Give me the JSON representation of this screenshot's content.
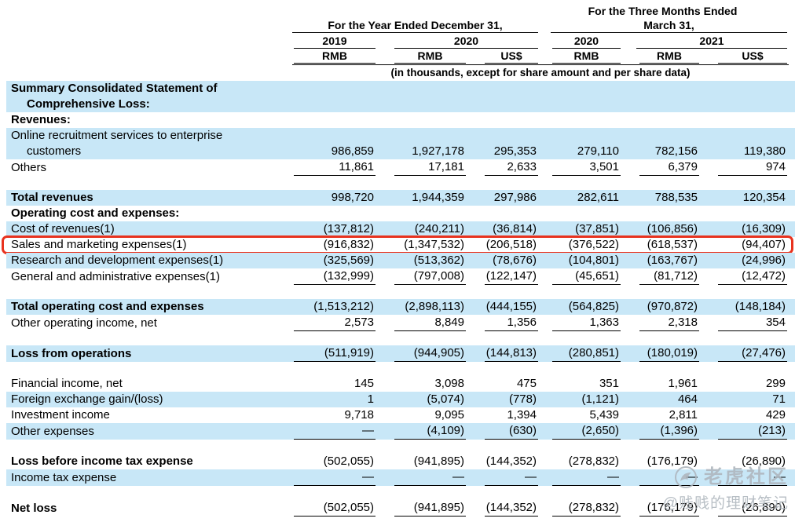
{
  "header": {
    "group_year": "For the Year Ended December 31,",
    "group_three_months_line1": "For the Three Months Ended",
    "group_three_months_line2": "March 31,",
    "years": [
      "2019",
      "2020",
      "2020",
      "2021"
    ],
    "currencies": [
      "RMB",
      "RMB",
      "US$",
      "RMB",
      "RMB",
      "US$"
    ],
    "units_note": "(in thousands, except for share amount and per share data)"
  },
  "colors": {
    "row_shade": "#c8e7f7",
    "highlight_border": "#e8321e",
    "watermark": "#aeb6bd"
  },
  "watermark": {
    "brand": "老虎社区",
    "handle": "@贱贱的理财笔记"
  },
  "table": {
    "rows": [
      {
        "label_lines": [
          "Summary Consolidated Statement of",
          "Comprehensive Loss:"
        ],
        "bold": true,
        "shaded": true,
        "cells": [
          "",
          "",
          "",
          "",
          "",
          ""
        ]
      },
      {
        "label": "Revenues:",
        "bold": true,
        "shaded": false,
        "cells": [
          "",
          "",
          "",
          "",
          "",
          ""
        ]
      },
      {
        "label_lines": [
          "Online recruitment services to enterprise",
          "customers"
        ],
        "bold": false,
        "shaded": true,
        "cells": [
          "986,859",
          "1,927,178",
          "295,353",
          "279,110",
          "782,156",
          "119,380"
        ]
      },
      {
        "label": "Others",
        "bold": false,
        "shaded": false,
        "underline": true,
        "cells": [
          "11,861",
          "17,181",
          "2,633",
          "3,501",
          "6,379",
          "974"
        ]
      },
      {
        "spacer": true
      },
      {
        "label": "Total revenues",
        "bold": true,
        "shaded": true,
        "cells": [
          "998,720",
          "1,944,359",
          "297,986",
          "282,611",
          "788,535",
          "120,354"
        ]
      },
      {
        "label": "Operating cost and expenses:",
        "bold": true,
        "shaded": false,
        "cells": [
          "",
          "",
          "",
          "",
          "",
          ""
        ]
      },
      {
        "label": "Cost of revenues(1)",
        "bold": false,
        "shaded": true,
        "cells": [
          "(137,812)",
          "(240,211)",
          "(36,814)",
          "(37,851)",
          "(106,856)",
          "(16,309)"
        ]
      },
      {
        "label": "Sales and marketing expenses(1)",
        "bold": false,
        "shaded": false,
        "highlight": true,
        "cells": [
          "(916,832)",
          "(1,347,532)",
          "(206,518)",
          "(376,522)",
          "(618,537)",
          "(94,407)"
        ]
      },
      {
        "label": "Research and development expenses(1)",
        "bold": false,
        "shaded": true,
        "cells": [
          "(325,569)",
          "(513,362)",
          "(78,676)",
          "(104,801)",
          "(163,767)",
          "(24,996)"
        ]
      },
      {
        "label": "General and administrative expenses(1)",
        "bold": false,
        "shaded": false,
        "underline": true,
        "cells": [
          "(132,999)",
          "(797,008)",
          "(122,147)",
          "(45,651)",
          "(81,712)",
          "(12,472)"
        ]
      },
      {
        "spacer": true
      },
      {
        "label": "Total operating cost and expenses",
        "bold": true,
        "shaded": true,
        "cells": [
          "(1,513,212)",
          "(2,898,113)",
          "(444,155)",
          "(564,825)",
          "(970,872)",
          "(148,184)"
        ]
      },
      {
        "label": "Other operating income, net",
        "bold": false,
        "shaded": false,
        "underline": true,
        "cells": [
          "2,573",
          "8,849",
          "1,356",
          "1,363",
          "2,318",
          "354"
        ]
      },
      {
        "spacer": true
      },
      {
        "label": "Loss from operations",
        "bold": true,
        "shaded": true,
        "underline": true,
        "cells": [
          "(511,919)",
          "(944,905)",
          "(144,813)",
          "(280,851)",
          "(180,019)",
          "(27,476)"
        ]
      },
      {
        "spacer": true
      },
      {
        "label": "Financial income, net",
        "bold": false,
        "shaded": false,
        "cells": [
          "145",
          "3,098",
          "475",
          "351",
          "1,961",
          "299"
        ]
      },
      {
        "label": "Foreign exchange gain/(loss)",
        "bold": false,
        "shaded": true,
        "cells": [
          "1",
          "(5,074)",
          "(778)",
          "(1,121)",
          "464",
          "71"
        ]
      },
      {
        "label": "Investment income",
        "bold": false,
        "shaded": false,
        "cells": [
          "9,718",
          "9,095",
          "1,394",
          "5,439",
          "2,811",
          "429"
        ]
      },
      {
        "label": "Other expenses",
        "bold": false,
        "shaded": true,
        "underline": true,
        "cells": [
          "—",
          "(4,109)",
          "(630)",
          "(2,650)",
          "(1,396)",
          "(213)"
        ]
      },
      {
        "spacer": true
      },
      {
        "label": "Loss before income tax expense",
        "bold": true,
        "shaded": false,
        "cells": [
          "(502,055)",
          "(941,895)",
          "(144,352)",
          "(278,832)",
          "(176,179)",
          "(26,890)"
        ]
      },
      {
        "label": "Income tax expense",
        "bold": false,
        "shaded": true,
        "underline": true,
        "cells": [
          "—",
          "—",
          "—",
          "—",
          "—",
          "—"
        ]
      },
      {
        "spacer": true
      },
      {
        "label": "Net loss",
        "bold": true,
        "shaded": false,
        "underline": true,
        "cells": [
          "(502,055)",
          "(941,895)",
          "(144,352)",
          "(278,832)",
          "(176,179)",
          "(26,890)"
        ]
      }
    ]
  }
}
